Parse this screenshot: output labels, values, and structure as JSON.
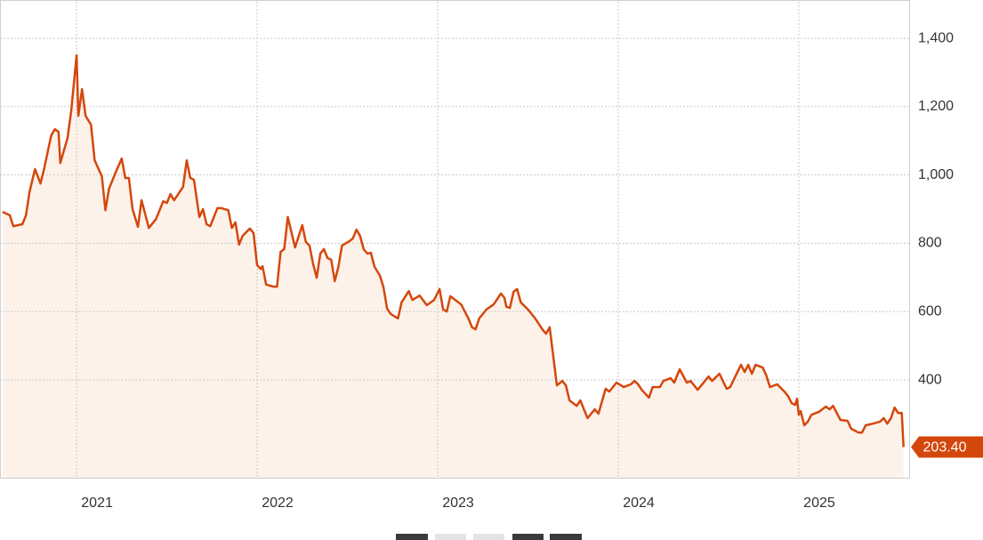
{
  "chart_data": {
    "type": "line",
    "color": "#d4470c",
    "area_color": "#fdf2ea",
    "grid": true,
    "xlim": [
      2020.576,
      2025.611
    ],
    "xticks": [
      2021,
      2022,
      2023,
      2024,
      2025
    ],
    "ylim": [
      111,
      1507
    ],
    "yticks": [
      400,
      600,
      800,
      {
        "value": 1000,
        "label": "1,000"
      },
      {
        "value": 1200,
        "label": "1,200"
      },
      {
        "value": 1400,
        "label": "1,400"
      }
    ],
    "annotations": [
      {
        "value": 203.4,
        "label": "203.40"
      }
    ],
    "x": [
      2020.59,
      2020.63,
      2020.65,
      2020.7,
      2020.72,
      2020.74,
      2020.77,
      2020.8,
      2020.82,
      2020.86,
      2020.88,
      2020.9,
      2020.91,
      2020.95,
      2020.97,
      2021.0,
      2021.01,
      2021.03,
      2021.05,
      2021.08,
      2021.1,
      2021.14,
      2021.16,
      2021.18,
      2021.22,
      2021.25,
      2021.27,
      2021.29,
      2021.31,
      2021.34,
      2021.36,
      2021.4,
      2021.44,
      2021.48,
      2021.5,
      2021.52,
      2021.54,
      2021.59,
      2021.61,
      2021.63,
      2021.65,
      2021.68,
      2021.7,
      2021.72,
      2021.74,
      2021.78,
      2021.8,
      2021.84,
      2021.86,
      2021.88,
      2021.9,
      2021.92,
      2021.96,
      2021.98,
      2022.0,
      2022.02,
      2022.03,
      2022.05,
      2022.09,
      2022.11,
      2022.13,
      2022.15,
      2022.17,
      2022.21,
      2022.25,
      2022.27,
      2022.29,
      2022.31,
      2022.33,
      2022.35,
      2022.37,
      2022.39,
      2022.41,
      2022.43,
      2022.45,
      2022.47,
      2022.51,
      2022.53,
      2022.55,
      2022.57,
      2022.59,
      2022.61,
      2022.63,
      2022.65,
      2022.68,
      2022.7,
      2022.72,
      2022.74,
      2022.78,
      2022.8,
      2022.84,
      2022.86,
      2022.9,
      2022.94,
      2022.98,
      2023.01,
      2023.03,
      2023.05,
      2023.07,
      2023.13,
      2023.17,
      2023.19,
      2023.21,
      2023.23,
      2023.27,
      2023.31,
      2023.35,
      2023.37,
      2023.38,
      2023.4,
      2023.42,
      2023.44,
      2023.46,
      2023.5,
      2023.54,
      2023.58,
      2023.6,
      2023.62,
      2023.64,
      2023.66,
      2023.69,
      2023.71,
      2023.73,
      2023.77,
      2023.79,
      2023.81,
      2023.83,
      2023.87,
      2023.89,
      2023.93,
      2023.95,
      2023.99,
      2024.03,
      2024.07,
      2024.09,
      2024.11,
      2024.13,
      2024.17,
      2024.19,
      2024.23,
      2024.25,
      2024.29,
      2024.31,
      2024.34,
      2024.38,
      2024.4,
      2024.44,
      2024.46,
      2024.5,
      2024.52,
      2024.56,
      2024.6,
      2024.62,
      2024.66,
      2024.68,
      2024.7,
      2024.72,
      2024.74,
      2024.76,
      2024.8,
      2024.82,
      2024.84,
      2024.88,
      2024.92,
      2024.94,
      2024.96,
      2024.98,
      2024.99,
      2025.0,
      2025.01,
      2025.03,
      2025.05,
      2025.07,
      2025.11,
      2025.15,
      2025.17,
      2025.19,
      2025.23,
      2025.27,
      2025.29,
      2025.33,
      2025.35,
      2025.37,
      2025.41,
      2025.45,
      2025.47,
      2025.49,
      2025.51,
      2025.53,
      2025.55,
      2025.57,
      2025.58
    ],
    "values": [
      892,
      882,
      850,
      856,
      882,
      952,
      1017,
      975,
      1017,
      1116,
      1134,
      1126,
      1035,
      1108,
      1186,
      1350,
      1173,
      1251,
      1173,
      1147,
      1043,
      996,
      897,
      960,
      1012,
      1048,
      991,
      991,
      900,
      848,
      926,
      845,
      871,
      923,
      918,
      944,
      926,
      965,
      1043,
      991,
      986,
      877,
      900,
      856,
      850,
      903,
      903,
      897,
      845,
      861,
      796,
      822,
      843,
      830,
      736,
      725,
      733,
      679,
      673,
      673,
      775,
      783,
      877,
      788,
      853,
      804,
      793,
      739,
      699,
      770,
      783,
      757,
      752,
      689,
      731,
      793,
      806,
      814,
      840,
      822,
      783,
      770,
      772,
      731,
      705,
      671,
      608,
      593,
      580,
      627,
      660,
      634,
      647,
      619,
      634,
      666,
      606,
      600,
      645,
      621,
      580,
      554,
      548,
      580,
      606,
      621,
      653,
      640,
      614,
      611,
      658,
      666,
      627,
      606,
      580,
      548,
      535,
      554,
      470,
      384,
      397,
      384,
      340,
      324,
      340,
      314,
      288,
      314,
      301,
      374,
      366,
      392,
      379,
      387,
      397,
      387,
      371,
      348,
      379,
      379,
      397,
      405,
      392,
      431,
      392,
      397,
      371,
      384,
      410,
      397,
      418,
      374,
      379,
      423,
      444,
      423,
      444,
      418,
      444,
      436,
      413,
      379,
      387,
      366,
      353,
      332,
      327,
      345,
      298,
      309,
      267,
      278,
      298,
      306,
      322,
      314,
      324,
      283,
      280,
      257,
      246,
      246,
      267,
      272,
      278,
      288,
      272,
      288,
      319,
      303,
      303,
      203.4
    ]
  }
}
